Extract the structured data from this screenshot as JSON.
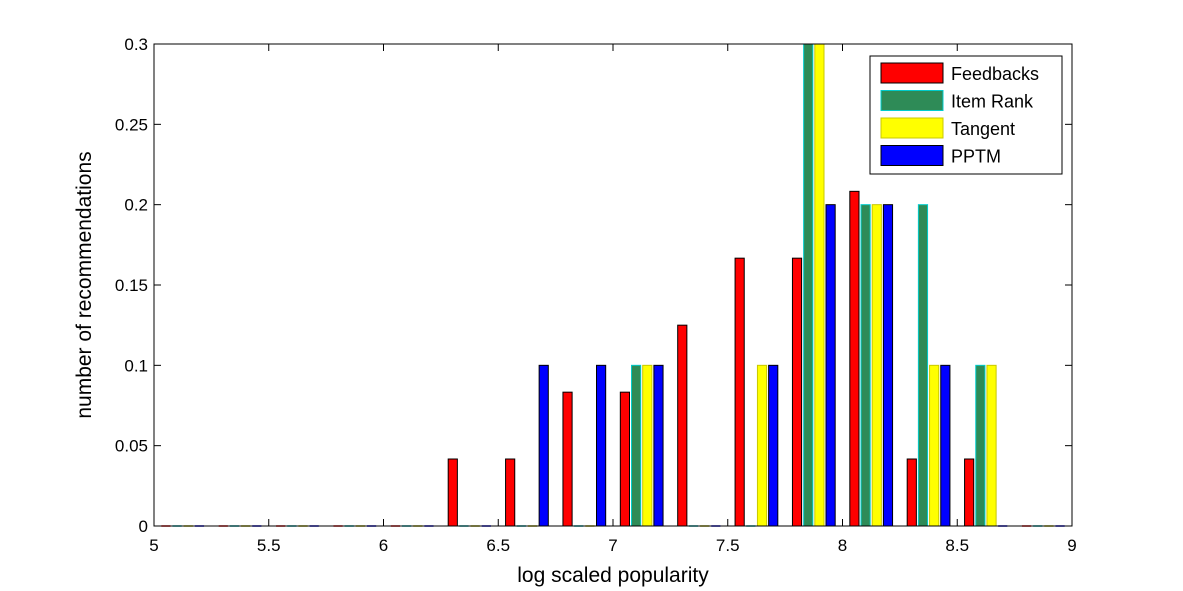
{
  "chart_data": {
    "type": "bar",
    "title": "",
    "xlabel": "log scaled popularity",
    "ylabel": "number of recommendations",
    "xlim": [
      5,
      9
    ],
    "ylim": [
      0,
      0.3
    ],
    "x_ticks": [
      "5",
      "5.5",
      "6",
      "6.5",
      "7",
      "7.5",
      "8",
      "8.5",
      "9"
    ],
    "y_ticks": [
      "0",
      "0.05",
      "0.1",
      "0.15",
      "0.2",
      "0.25",
      "0.3"
    ],
    "grid": false,
    "legend_position": "top-right",
    "bin_centers": [
      5.125,
      5.375,
      5.625,
      5.875,
      6.125,
      6.375,
      6.625,
      6.875,
      7.125,
      7.375,
      7.625,
      7.875,
      8.125,
      8.375,
      8.625,
      8.875
    ],
    "series": [
      {
        "name": "Feedbacks",
        "color": "#ff0000",
        "edge": "#000000",
        "values": [
          0,
          0,
          0,
          0,
          0,
          0.0417,
          0.0417,
          0.0833,
          0.0833,
          0.125,
          0.1667,
          0.1667,
          0.2083,
          0.0417,
          0.0417,
          0
        ]
      },
      {
        "name": "Item Rank",
        "color": "#2e8b57",
        "edge": "#00cccc",
        "values": [
          0,
          0,
          0,
          0,
          0,
          0,
          0,
          0,
          0.1,
          0,
          0,
          0.3,
          0.2,
          0.2,
          0.1,
          0
        ]
      },
      {
        "name": "Tangent",
        "color": "#ffff00",
        "edge": "#c8c800",
        "values": [
          0,
          0,
          0,
          0,
          0,
          0,
          0,
          0,
          0.1,
          0,
          0.1,
          0.3,
          0.2,
          0.1,
          0.1,
          0
        ]
      },
      {
        "name": "PPTM",
        "color": "#0000ff",
        "edge": "#000000",
        "values": [
          0,
          0,
          0,
          0,
          0,
          0,
          0.1,
          0.1,
          0.1,
          0,
          0.1,
          0.2,
          0.2,
          0.1,
          0,
          0
        ]
      }
    ]
  }
}
